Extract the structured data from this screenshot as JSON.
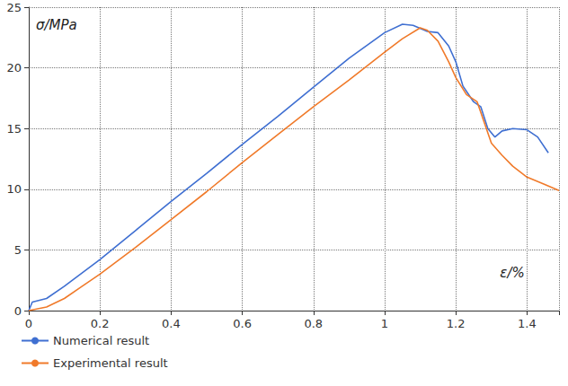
{
  "chart_data": {
    "type": "line",
    "x_label": "ε/%",
    "y_label": "σ/MPa",
    "xlim": [
      0,
      1.49
    ],
    "xticks": [
      0,
      0.2,
      0.4,
      0.6,
      0.8,
      1,
      1.2,
      1.4
    ],
    "ylim": [
      0,
      25
    ],
    "yticks": [
      0,
      5,
      10,
      15,
      20,
      25
    ],
    "grid": true,
    "legend": "bottom-left",
    "series": [
      {
        "name": "Numerical result",
        "color": "#3f6fd1",
        "x": [
          0,
          0.01,
          0.05,
          0.1,
          0.2,
          0.3,
          0.4,
          0.5,
          0.6,
          0.7,
          0.8,
          0.9,
          1.0,
          1.05,
          1.08,
          1.12,
          1.15,
          1.18,
          1.2,
          1.22,
          1.25,
          1.27,
          1.29,
          1.31,
          1.33,
          1.36,
          1.4,
          1.43,
          1.46
        ],
        "values": [
          0,
          0.7,
          1.0,
          2.0,
          4.2,
          6.6,
          9.0,
          11.3,
          13.7,
          16.0,
          18.4,
          20.8,
          22.9,
          23.6,
          23.5,
          23.0,
          22.9,
          21.8,
          20.5,
          18.5,
          17.2,
          16.8,
          15.0,
          14.3,
          14.8,
          15.0,
          14.9,
          14.3,
          13.0
        ]
      },
      {
        "name": "Experimental result",
        "color": "#f07a2a",
        "x": [
          0,
          0.05,
          0.1,
          0.15,
          0.2,
          0.3,
          0.4,
          0.5,
          0.6,
          0.7,
          0.8,
          0.9,
          1.0,
          1.05,
          1.1,
          1.12,
          1.15,
          1.18,
          1.2,
          1.23,
          1.26,
          1.28,
          1.3,
          1.33,
          1.36,
          1.4,
          1.45,
          1.49
        ],
        "values": [
          0,
          0.3,
          1.0,
          2.0,
          3.0,
          5.2,
          7.5,
          9.8,
          12.2,
          14.5,
          16.8,
          19.0,
          21.3,
          22.4,
          23.3,
          23.1,
          22.2,
          20.5,
          19.2,
          17.8,
          17.2,
          15.5,
          13.8,
          12.8,
          11.9,
          11.0,
          10.4,
          9.9
        ]
      }
    ]
  }
}
